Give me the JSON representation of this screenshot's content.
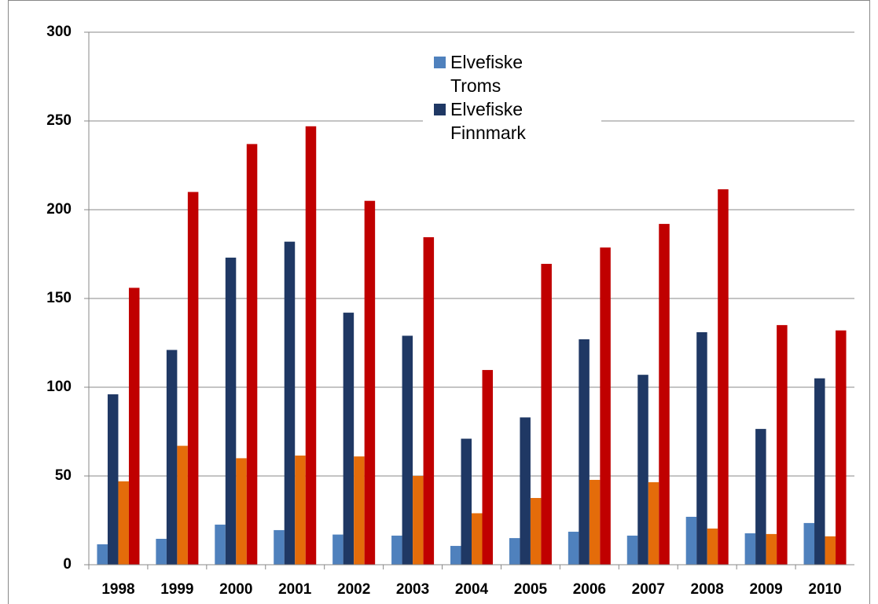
{
  "chart_data": {
    "type": "bar",
    "categories": [
      "1998",
      "1999",
      "2000",
      "2001",
      "2002",
      "2003",
      "2004",
      "2005",
      "2006",
      "2007",
      "2008",
      "2009",
      "2010"
    ],
    "series": [
      {
        "name": "Elvefiske Troms",
        "color": "#4f81bd",
        "values": [
          11.5,
          14.6,
          22.6,
          19.5,
          17,
          16.4,
          10.6,
          15,
          18.6,
          16.4,
          27,
          17.7,
          23.5
        ]
      },
      {
        "name": "Elvefiske Finnmark",
        "color": "#1f3864",
        "values": [
          96,
          121,
          173,
          182,
          142,
          129,
          71,
          83,
          127,
          107,
          131,
          76.5,
          105
        ]
      },
      {
        "color": "#e46c0a",
        "values": [
          47,
          67,
          60,
          61.5,
          61,
          50,
          29,
          37.6,
          47.8,
          46.5,
          20.4,
          17.3,
          16
        ]
      },
      {
        "color": "#c00000",
        "values": [
          156,
          210,
          237,
          247,
          205,
          184.5,
          109.7,
          169.5,
          178.7,
          192,
          211.5,
          135,
          132
        ]
      }
    ],
    "ylim": [
      0,
      300
    ],
    "yticks": [
      0,
      50,
      100,
      150,
      200,
      250,
      300
    ],
    "grid": true,
    "legend": "top"
  }
}
